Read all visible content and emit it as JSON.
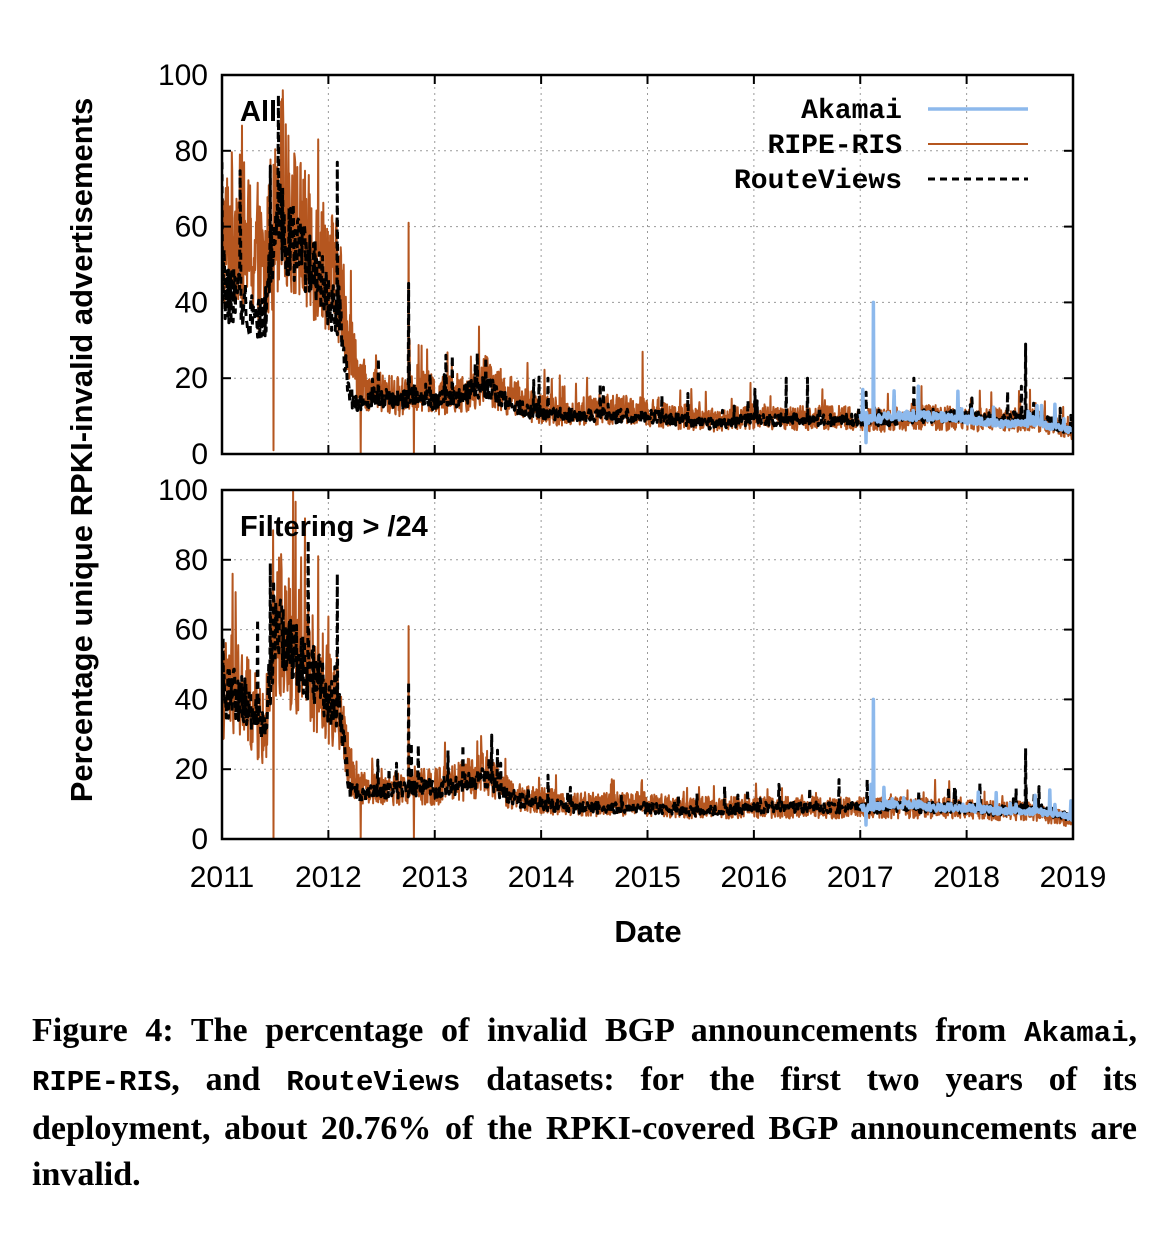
{
  "chart_data": {
    "type": "line",
    "xlabel": "Date",
    "ylabel": "Percentage unique RPKI-invalid advertisements",
    "x_ticks": [
      "2011",
      "2012",
      "2013",
      "2014",
      "2015",
      "2016",
      "2017",
      "2018",
      "2019"
    ],
    "y_ticks": [
      "0",
      "20",
      "40",
      "60",
      "80",
      "100"
    ],
    "xlim": [
      2011,
      2019
    ],
    "ylim": [
      0,
      100
    ],
    "grid": true,
    "legend_position": "top-right",
    "colors": {
      "Akamai": "#8db9ec",
      "RIPE-RIS": "#b5561f",
      "RouteViews": "#000000"
    },
    "panels": [
      {
        "label": "All",
        "series": [
          {
            "name": "RIPE-RIS",
            "x": [
              2011.0,
              2011.1,
              2011.2,
              2011.3,
              2011.4,
              2011.5,
              2011.55,
              2011.6,
              2011.7,
              2011.8,
              2011.9,
              2012.0,
              2012.1,
              2012.2,
              2012.3,
              2012.4,
              2012.5,
              2012.7,
              2012.8,
              2012.9,
              2013.0,
              2013.2,
              2013.4,
              2013.5,
              2013.6,
              2013.8,
              2014.0,
              2014.3,
              2014.6,
              2015.0,
              2015.3,
              2015.6,
              2016.0,
              2016.3,
              2016.6,
              2017.0,
              2017.3,
              2017.6,
              2018.0,
              2018.3,
              2018.6,
              2018.9,
              2019.0
            ],
            "y": [
              55,
              60,
              58,
              52,
              48,
              62,
              70,
              65,
              60,
              55,
              52,
              50,
              45,
              30,
              18,
              17,
              16,
              15,
              18,
              17,
              15,
              16,
              18,
              20,
              17,
              14,
              12,
              11,
              12,
              11,
              10,
              9,
              10,
              9,
              10,
              9,
              9,
              10,
              9,
              9,
              9,
              7,
              5
            ],
            "spikes": [
              [
                2011.48,
                1
              ],
              [
                2011.62,
                84
              ],
              [
                2011.9,
                83
              ],
              [
                2012.3,
                0
              ],
              [
                2012.75,
                61
              ],
              [
                2012.8,
                0
              ],
              [
                2014.95,
                27
              ]
            ]
          },
          {
            "name": "RouteViews",
            "x": [
              2011.0,
              2011.1,
              2011.2,
              2011.3,
              2011.4,
              2011.5,
              2011.55,
              2011.6,
              2011.7,
              2011.8,
              2011.9,
              2012.0,
              2012.1,
              2012.2,
              2012.3,
              2012.4,
              2012.5,
              2012.7,
              2012.8,
              2012.9,
              2013.0,
              2013.2,
              2013.4,
              2013.5,
              2013.6,
              2013.8,
              2014.0,
              2014.3,
              2014.6,
              2015.0,
              2015.3,
              2015.6,
              2016.0,
              2016.3,
              2016.6,
              2017.0,
              2017.3,
              2017.6,
              2018.0,
              2018.3,
              2018.6,
              2018.9,
              2019.0
            ],
            "y": [
              41,
              42,
              40,
              37,
              35,
              60,
              62,
              58,
              55,
              50,
              48,
              40,
              38,
              15,
              13,
              15,
              15,
              14,
              16,
              15,
              14,
              15,
              17,
              18,
              15,
              12,
              11,
              10,
              10,
              10,
              9,
              8,
              9,
              9,
              9,
              9,
              9,
              10,
              10,
              9,
              10,
              7,
              6
            ],
            "spikes": [
              [
                2011.45,
                76
              ],
              [
                2012.08,
                77
              ],
              [
                2012.75,
                45
              ],
              [
                2016.3,
                20
              ],
              [
                2016.5,
                20
              ],
              [
                2017.5,
                20
              ],
              [
                2018.55,
                29
              ]
            ]
          },
          {
            "name": "Akamai",
            "x": [
              2017.0,
              2017.1,
              2017.3,
              2017.5,
              2017.7,
              2018.0,
              2018.3,
              2018.6,
              2018.9,
              2019.0
            ],
            "y": [
              10,
              9,
              10,
              10,
              10,
              9,
              8,
              8,
              7,
              6
            ],
            "spikes": [
              [
                2017.12,
                40
              ],
              [
                2017.05,
                3
              ]
            ]
          }
        ]
      },
      {
        "label": "Filtering > /24",
        "series": [
          {
            "name": "RIPE-RIS",
            "x": [
              2011.0,
              2011.1,
              2011.2,
              2011.3,
              2011.4,
              2011.5,
              2011.55,
              2011.6,
              2011.7,
              2011.8,
              2011.9,
              2012.0,
              2012.1,
              2012.2,
              2012.3,
              2012.4,
              2012.5,
              2012.7,
              2012.8,
              2012.9,
              2013.0,
              2013.2,
              2013.4,
              2013.5,
              2013.6,
              2013.8,
              2014.0,
              2014.3,
              2014.6,
              2015.0,
              2015.3,
              2015.6,
              2016.0,
              2016.3,
              2016.6,
              2017.0,
              2017.3,
              2017.6,
              2018.0,
              2018.3,
              2018.6,
              2018.9,
              2019.0
            ],
            "y": [
              42,
              44,
              40,
              36,
              30,
              60,
              62,
              58,
              55,
              50,
              46,
              42,
              38,
              20,
              15,
              15,
              15,
              14,
              16,
              15,
              15,
              16,
              18,
              19,
              15,
              12,
              11,
              10,
              10,
              10,
              9,
              9,
              9,
              9,
              9,
              9,
              9,
              9,
              9,
              8,
              8,
              6,
              5
            ],
            "spikes": [
              [
                2011.48,
                0
              ],
              [
                2011.9,
                81
              ],
              [
                2012.3,
                0
              ],
              [
                2012.75,
                61
              ],
              [
                2012.8,
                0
              ]
            ]
          },
          {
            "name": "RouteViews",
            "x": [
              2011.0,
              2011.1,
              2011.2,
              2011.3,
              2011.4,
              2011.5,
              2011.55,
              2011.6,
              2011.7,
              2011.8,
              2011.9,
              2012.0,
              2012.1,
              2012.2,
              2012.3,
              2012.4,
              2012.5,
              2012.7,
              2012.8,
              2012.9,
              2013.0,
              2013.2,
              2013.4,
              2013.5,
              2013.6,
              2013.8,
              2014.0,
              2014.3,
              2014.6,
              2015.0,
              2015.3,
              2015.6,
              2016.0,
              2016.3,
              2016.6,
              2017.0,
              2017.3,
              2017.6,
              2018.0,
              2018.3,
              2018.6,
              2018.9,
              2019.0
            ],
            "y": [
              42,
              42,
              40,
              37,
              34,
              58,
              60,
              56,
              52,
              48,
              46,
              40,
              38,
              14,
              13,
              14,
              14,
              14,
              15,
              15,
              14,
              15,
              17,
              18,
              14,
              11,
              10,
              9,
              9,
              9,
              8,
              8,
              9,
              9,
              9,
              9,
              9,
              9,
              9,
              8,
              9,
              7,
              6
            ],
            "spikes": [
              [
                2011.45,
                79
              ],
              [
                2012.08,
                76
              ],
              [
                2012.75,
                45
              ],
              [
                2018.55,
                26
              ]
            ]
          },
          {
            "name": "Akamai",
            "x": [
              2017.0,
              2017.1,
              2017.3,
              2017.5,
              2017.7,
              2018.0,
              2018.3,
              2018.6,
              2018.9,
              2019.0
            ],
            "y": [
              9,
              9,
              10,
              10,
              9,
              9,
              8,
              8,
              7,
              6
            ],
            "spikes": [
              [
                2017.12,
                40
              ],
              [
                2017.05,
                4
              ]
            ]
          }
        ]
      }
    ]
  },
  "caption": {
    "prefix": "Figure 4: The percentage of invalid BGP announcements from ",
    "dataset_1": "Akamai",
    "sep_1": ", ",
    "dataset_2": "RIPE-RIS",
    "sep_2": ", and ",
    "dataset_3": "RouteViews",
    "suffix": " datasets: for the first two years of its deployment, about 20.76% of the RPKI-covered BGP announcements are invalid."
  }
}
